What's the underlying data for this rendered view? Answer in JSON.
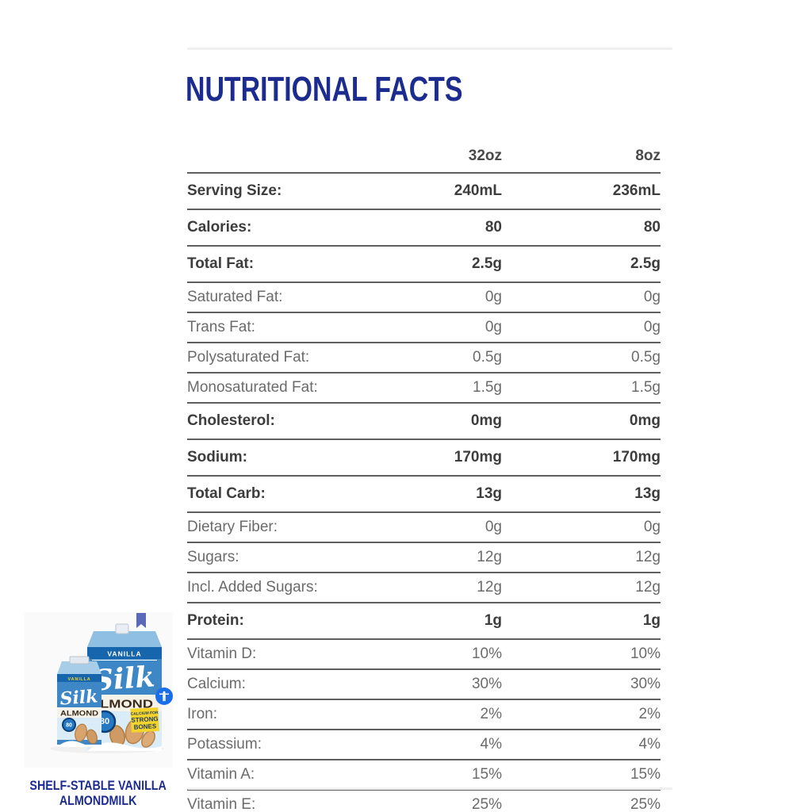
{
  "title": "NUTRITIONAL FACTS",
  "table": {
    "columns": [
      "32oz",
      "8oz"
    ],
    "rows": [
      {
        "label": "Serving Size:",
        "v32": "240mL",
        "v8": "236mL",
        "bold": true
      },
      {
        "label": "Calories:",
        "v32": "80",
        "v8": "80",
        "bold": true
      },
      {
        "label": "Total Fat:",
        "v32": "2.5g",
        "v8": "2.5g",
        "bold": true
      },
      {
        "label": "Saturated Fat:",
        "v32": "0g",
        "v8": "0g",
        "bold": false
      },
      {
        "label": "Trans Fat:",
        "v32": "0g",
        "v8": "0g",
        "bold": false
      },
      {
        "label": "Polysaturated Fat:",
        "v32": "0.5g",
        "v8": "0.5g",
        "bold": false
      },
      {
        "label": "Monosaturated Fat:",
        "v32": "1.5g",
        "v8": "1.5g",
        "bold": false
      },
      {
        "label": "Cholesterol:",
        "v32": "0mg",
        "v8": "0mg",
        "bold": true
      },
      {
        "label": "Sodium:",
        "v32": "170mg",
        "v8": "170mg",
        "bold": true
      },
      {
        "label": "Total Carb:",
        "v32": "13g",
        "v8": "13g",
        "bold": true
      },
      {
        "label": "Dietary Fiber:",
        "v32": "0g",
        "v8": "0g",
        "bold": false
      },
      {
        "label": "Sugars:",
        "v32": "12g",
        "v8": "12g",
        "bold": false
      },
      {
        "label": "Incl. Added Sugars:",
        "v32": "12g",
        "v8": "12g",
        "bold": false
      },
      {
        "label": "Protein:",
        "v32": "1g",
        "v8": "1g",
        "bold": true
      },
      {
        "label": "Vitamin D:",
        "v32": "10%",
        "v8": "10%",
        "bold": false
      },
      {
        "label": "Calcium:",
        "v32": "30%",
        "v8": "30%",
        "bold": false
      },
      {
        "label": "Iron:",
        "v32": "2%",
        "v8": "2%",
        "bold": false
      },
      {
        "label": "Potassium:",
        "v32": "4%",
        "v8": "4%",
        "bold": false
      },
      {
        "label": "Vitamin A:",
        "v32": "15%",
        "v8": "15%",
        "bold": false
      },
      {
        "label": "Vitamin E:",
        "v32": "25%",
        "v8": "25%",
        "bold": false
      }
    ]
  },
  "product": {
    "caption_line1": "SHELF-STABLE VANILLA",
    "caption_line2": "ALMONDMILK",
    "carton_brand": "Silk",
    "carton_flavor": "VANILLA",
    "carton_type": "ALMOND",
    "calories_badge": "80",
    "claim_lines": [
      "CALCIUM FOR",
      "STRONG",
      "BONES"
    ]
  },
  "icons": {
    "bookmark": "bookmark-icon",
    "accessibility": "accessibility-icon"
  },
  "colors": {
    "title_blue": "#1c2b8e",
    "table_line": "#5e5e5e",
    "bold_text": "#3d3d3d",
    "regular_text": "#6b6b6b",
    "carton_blue": "#3d87c6",
    "badge_blue": "#2579c2",
    "sticker_yellow": "#f3d42d",
    "bookmark_purple": "#5c68b8",
    "a11y_blue": "#1a6fe8"
  }
}
